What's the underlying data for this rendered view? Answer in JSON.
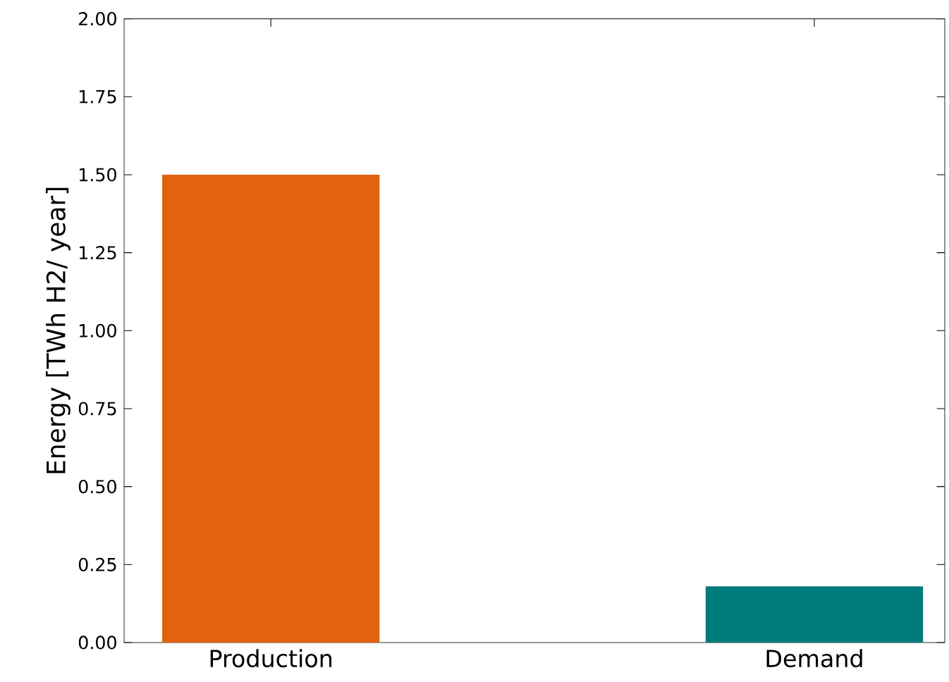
{
  "chart_data": {
    "type": "bar",
    "ylabel": "Energy [TWh H2/ year]",
    "categories": [
      "Production",
      "Demand"
    ],
    "values": [
      1.5,
      0.18
    ],
    "colors": [
      "#e3620f",
      "#007b7b"
    ],
    "ylim": [
      0,
      2
    ],
    "yticks": [
      {
        "value": 0,
        "label": "0.00"
      },
      {
        "value": 0.25,
        "label": "0.25"
      },
      {
        "value": 0.5,
        "label": "0.50"
      },
      {
        "value": 0.75,
        "label": "0.75"
      },
      {
        "value": 1,
        "label": "1.00"
      },
      {
        "value": 1.25,
        "label": "1.25"
      },
      {
        "value": 1.5,
        "label": "1.50"
      },
      {
        "value": 1.75,
        "label": "1.75"
      },
      {
        "value": 2,
        "label": "2.00"
      }
    ],
    "grid": false
  }
}
